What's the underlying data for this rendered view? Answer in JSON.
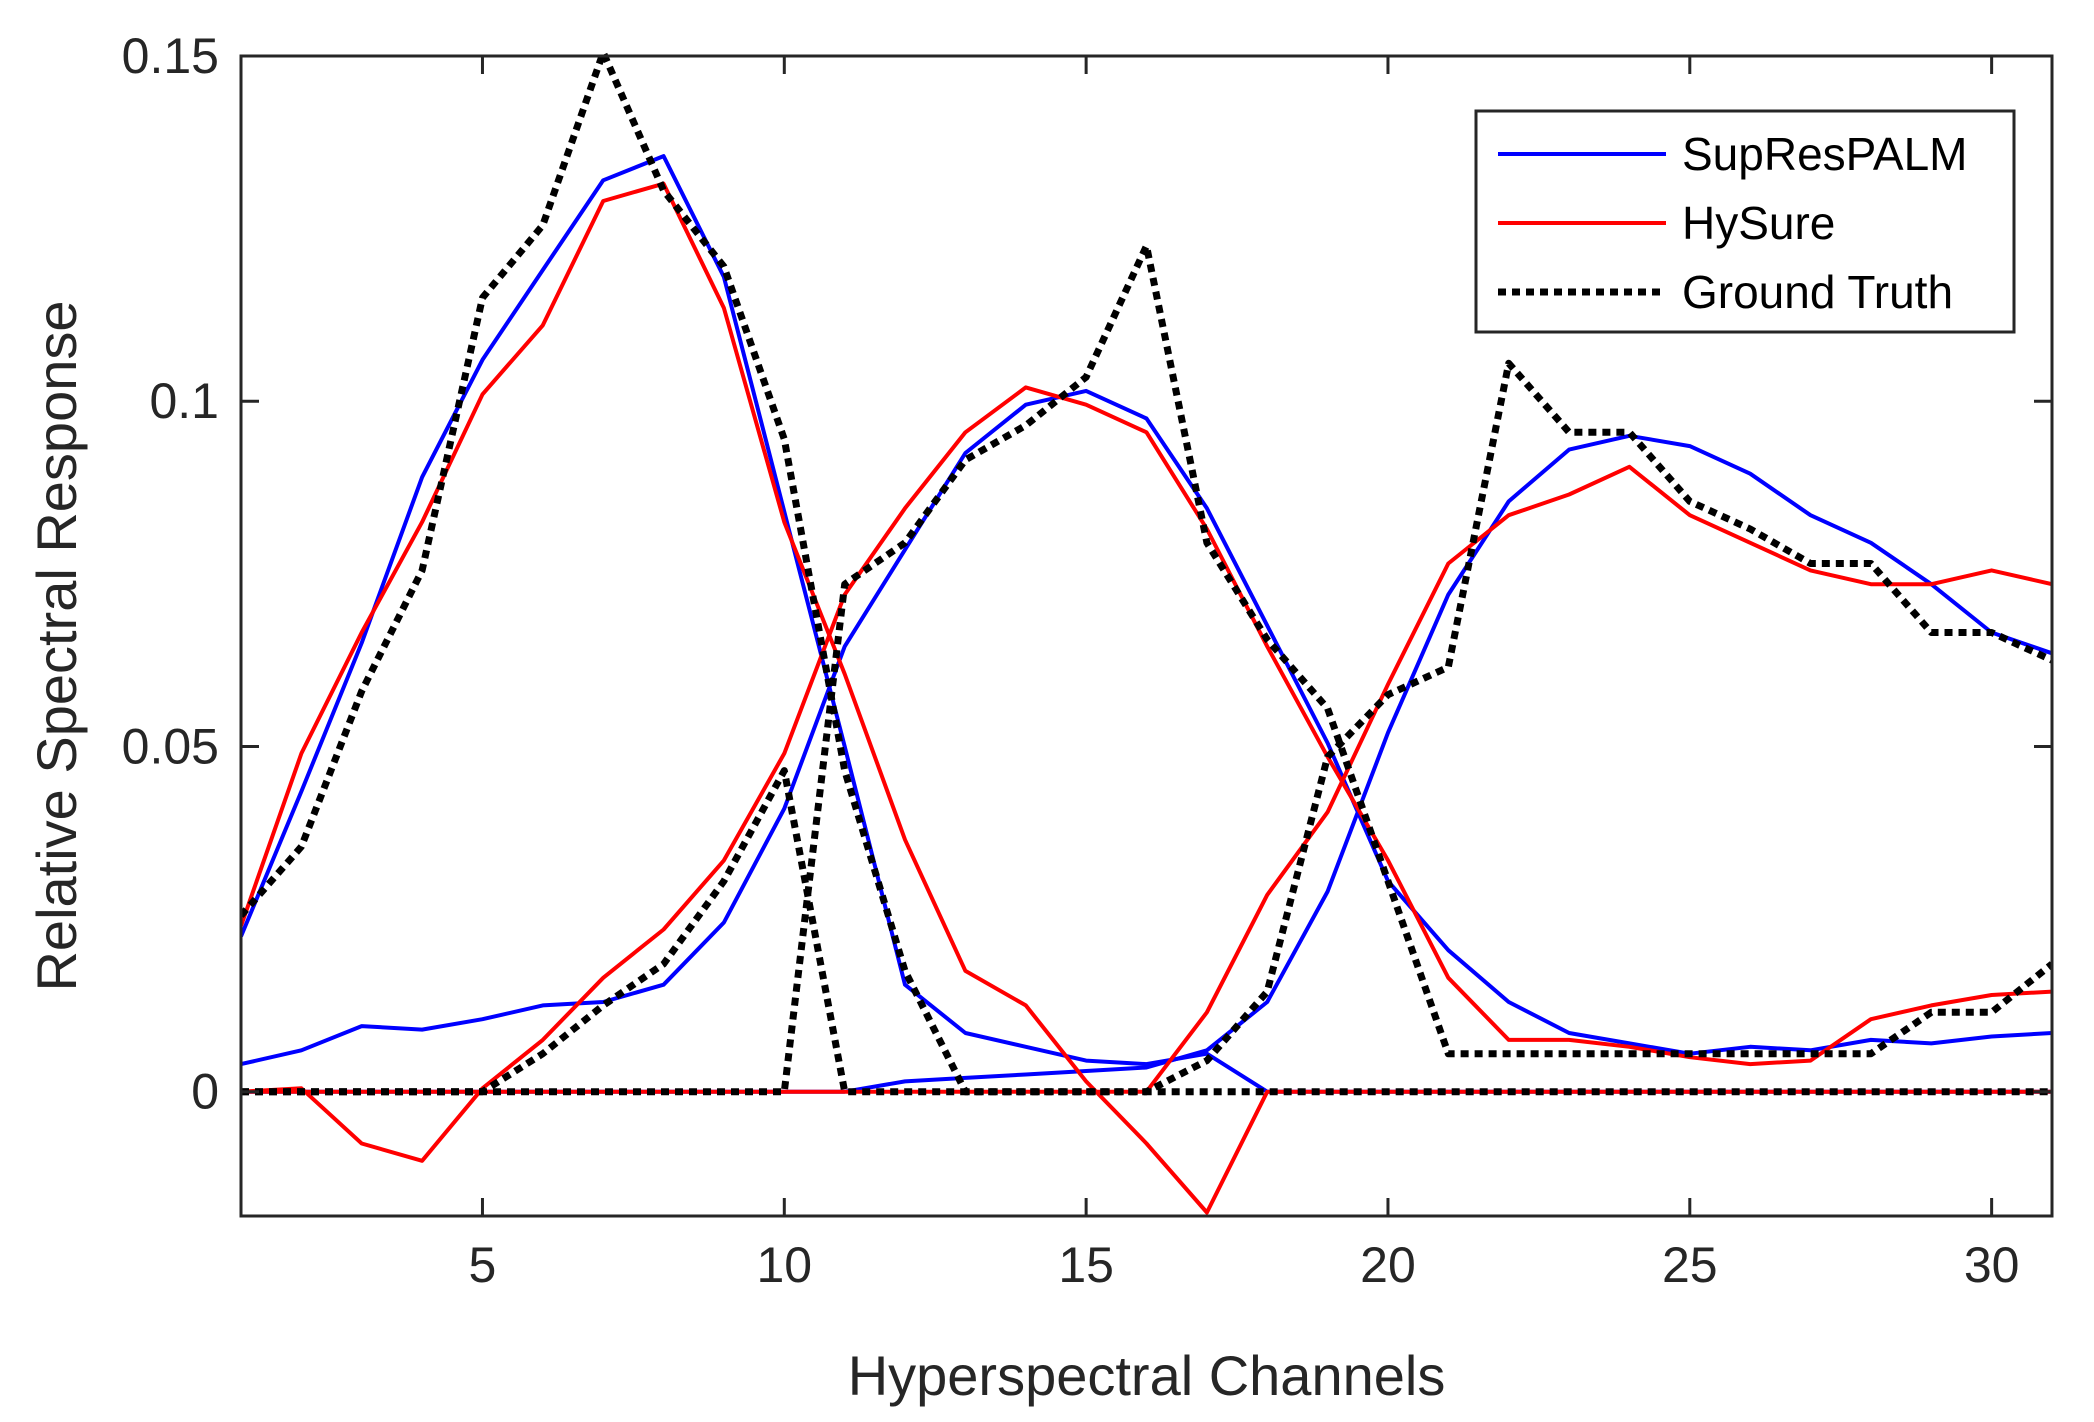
{
  "chart_data": {
    "type": "line",
    "xlabel": "Hyperspectral Channels",
    "ylabel": "Relative Spectral Response",
    "xlim": [
      1,
      31
    ],
    "ylim": [
      -0.018,
      0.15
    ],
    "xticks": [
      5,
      10,
      15,
      20,
      25,
      30
    ],
    "xtick_labels": [
      "5",
      "10",
      "15",
      "20",
      "25",
      "30"
    ],
    "yticks": [
      0,
      0.05,
      0.1,
      0.15
    ],
    "ytick_labels": [
      "0",
      "0.05",
      "0.1",
      "0.15"
    ],
    "grid": false,
    "legend_position": "top-right",
    "x": [
      1,
      2,
      3,
      4,
      5,
      6,
      7,
      8,
      9,
      10,
      11,
      12,
      13,
      14,
      15,
      16,
      17,
      18,
      19,
      20,
      21,
      22,
      23,
      24,
      25,
      26,
      27,
      28,
      29,
      30,
      31
    ],
    "legend": [
      {
        "name": "SupResPALM",
        "color": "#0000ff",
        "style": "solid"
      },
      {
        "name": "HySure",
        "color": "#ff0000",
        "style": "solid"
      },
      {
        "name": "Ground Truth",
        "color": "#000000",
        "style": "dotted"
      }
    ],
    "series": [
      {
        "group": "SupResPALM",
        "band": 1,
        "color": "#0000ff",
        "style": "solid",
        "values": [
          0.0225,
          0.0435,
          0.065,
          0.089,
          0.106,
          0.119,
          0.132,
          0.1355,
          0.118,
          0.084,
          0.05,
          0.0155,
          0.0085,
          0.0065,
          0.0045,
          0.004,
          0.0055,
          0,
          0,
          0,
          0,
          0,
          0,
          0,
          0,
          0,
          0,
          0,
          0,
          0,
          0
        ]
      },
      {
        "group": "SupResPALM",
        "band": 2,
        "color": "#0000ff",
        "style": "solid",
        "values": [
          0,
          0,
          0,
          0,
          0,
          0,
          0,
          0,
          0,
          0,
          0,
          0.0015,
          0.002,
          0.0025,
          0.003,
          0.0035,
          0.006,
          0.013,
          0.029,
          0.052,
          0.072,
          0.0855,
          0.093,
          0.095,
          0.0935,
          0.0895,
          0.0835,
          0.0795,
          0.0735,
          0.0665,
          0.0635
        ]
      },
      {
        "group": "SupResPALM",
        "band": 3,
        "color": "#0000ff",
        "style": "solid",
        "values": [
          0.004,
          0.006,
          0.0095,
          0.009,
          0.0105,
          0.0125,
          0.013,
          0.0155,
          0.0245,
          0.041,
          0.0645,
          0.0785,
          0.0925,
          0.0995,
          0.1015,
          0.0975,
          0.0845,
          0.0675,
          0.0505,
          0.0305,
          0.0205,
          0.013,
          0.0085,
          0.007,
          0.0055,
          0.0065,
          0.006,
          0.0075,
          0.007,
          0.008,
          0.0085
        ]
      },
      {
        "group": "HySure",
        "band": 1,
        "color": "#ff0000",
        "style": "solid",
        "values": [
          0.024,
          0.049,
          0.0665,
          0.0825,
          0.101,
          0.111,
          0.129,
          0.1315,
          0.1135,
          0.0825,
          0.0605,
          0.0365,
          0.0175,
          0.0125,
          0.0015,
          -0.0075,
          -0.0175,
          0,
          0,
          0,
          0,
          0,
          0,
          0,
          0,
          0,
          0,
          0,
          0,
          0,
          0
        ]
      },
      {
        "group": "HySure",
        "band": 2,
        "color": "#ff0000",
        "style": "solid",
        "values": [
          0,
          0,
          0,
          0,
          0,
          0,
          0,
          0,
          0,
          0,
          0,
          0,
          0,
          0,
          0,
          0,
          0.0115,
          0.0285,
          0.0405,
          0.059,
          0.0765,
          0.0835,
          0.0865,
          0.0905,
          0.0835,
          0.0795,
          0.0755,
          0.0735,
          0.0735,
          0.0755,
          0.0735
        ]
      },
      {
        "group": "HySure",
        "band": 3,
        "color": "#ff0000",
        "style": "solid",
        "values": [
          0,
          0.0005,
          -0.0075,
          -0.01,
          0.0005,
          0.0075,
          0.0165,
          0.0235,
          0.0335,
          0.049,
          0.072,
          0.0845,
          0.0955,
          0.102,
          0.0995,
          0.0955,
          0.0815,
          0.0645,
          0.0485,
          0.0335,
          0.0165,
          0.0075,
          0.0075,
          0.0065,
          0.005,
          0.004,
          0.0045,
          0.0105,
          0.0125,
          0.014,
          0.0145
        ]
      }
    ],
    "ground_truth": [
      {
        "group": "Ground Truth",
        "band": 1,
        "color": "#000000",
        "style": "dotted",
        "values": [
          0.0255,
          0.0355,
          0.058,
          0.0755,
          0.115,
          0.1255,
          0.1505,
          0.1305,
          0.1195,
          0.0945,
          0.0465,
          0.0175,
          0,
          0,
          0,
          0,
          0,
          0,
          0,
          0,
          0,
          0,
          0,
          0,
          0,
          0,
          0,
          0,
          0,
          0,
          0
        ]
      },
      {
        "group": "Ground Truth",
        "band": 2,
        "color": "#000000",
        "style": "dotted",
        "values": [
          0,
          0,
          0,
          0,
          0,
          0,
          0,
          0,
          0,
          0,
          0.0735,
          0.0795,
          0.0915,
          0.0965,
          0.1035,
          0.1225,
          0.0795,
          0.0655,
          0.0555,
          0.0305,
          0.0055,
          0.0055,
          0.0055,
          0.0055,
          0.0055,
          0.0055,
          0.0055,
          0.0055,
          0.0115,
          0.0115,
          0.0185
        ]
      },
      {
        "group": "Ground Truth",
        "band": 3,
        "color": "#000000",
        "style": "dotted",
        "values": [
          0,
          0,
          0,
          0,
          0,
          0.0055,
          0.0125,
          0.0185,
          0.0305,
          0.0465,
          0,
          0,
          0,
          0,
          0,
          0,
          0.0045,
          0.0145,
          0.0485,
          0.0575,
          0.0615,
          0.1055,
          0.0955,
          0.0955,
          0.0855,
          0.0815,
          0.0765,
          0.0765,
          0.0665,
          0.0665,
          0.0625
        ]
      }
    ]
  }
}
